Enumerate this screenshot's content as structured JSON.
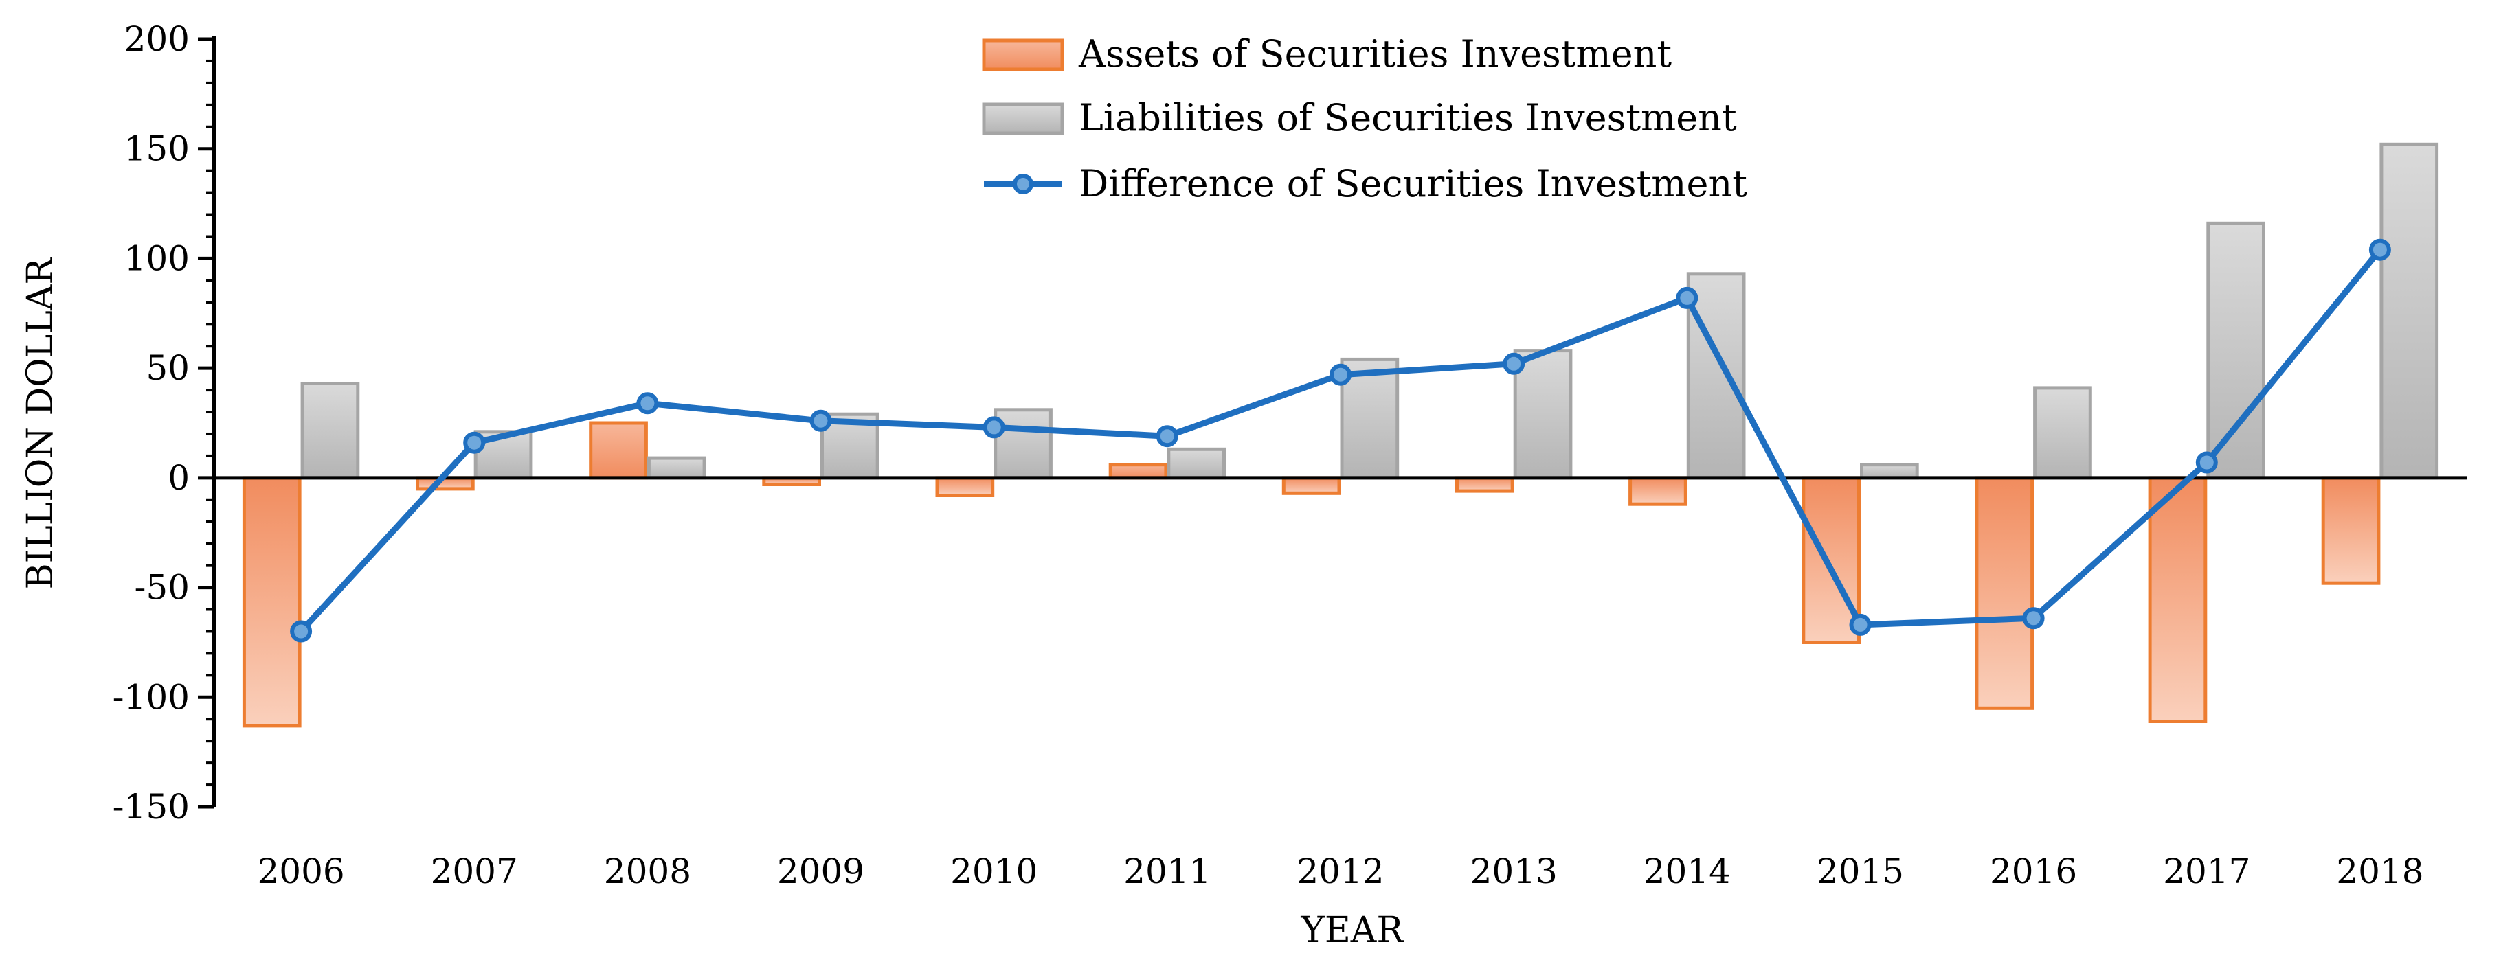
{
  "chart_data": {
    "type": "bar",
    "title": "",
    "xlabel": "YEAR",
    "ylabel": "BILLION DOLLAR",
    "ylim": [
      -150,
      200
    ],
    "yticks": [
      200,
      150,
      100,
      50,
      0,
      -50,
      -100,
      -150
    ],
    "grid": false,
    "legend_position": "top-center",
    "categories": [
      "2006",
      "2007",
      "2008",
      "2009",
      "2010",
      "2011",
      "2012",
      "2013",
      "2014",
      "2015",
      "2016",
      "2017",
      "2018"
    ],
    "series": [
      {
        "name": "Assets of Securities Investment",
        "kind": "bar",
        "color": "#F4A07A",
        "edge_color": "#ED7D31",
        "values": [
          -113,
          -5,
          25,
          -3,
          -8,
          6,
          -7,
          -6,
          -12,
          -75,
          -105,
          -111,
          -48
        ]
      },
      {
        "name": "Liabilities of Securities Investment",
        "kind": "bar",
        "color": "#C8C8C8",
        "edge_color": "#A5A5A5",
        "values": [
          43,
          21,
          9,
          29,
          31,
          13,
          54,
          58,
          93,
          6,
          41,
          116,
          152
        ]
      },
      {
        "name": "Difference of Securities Investment",
        "kind": "line",
        "color": "#1F6FC0",
        "marker_fill": "#6FA8DC",
        "values": [
          -70,
          16,
          34,
          26,
          23,
          19,
          47,
          52,
          82,
          -67,
          -64,
          7,
          104
        ]
      }
    ]
  }
}
